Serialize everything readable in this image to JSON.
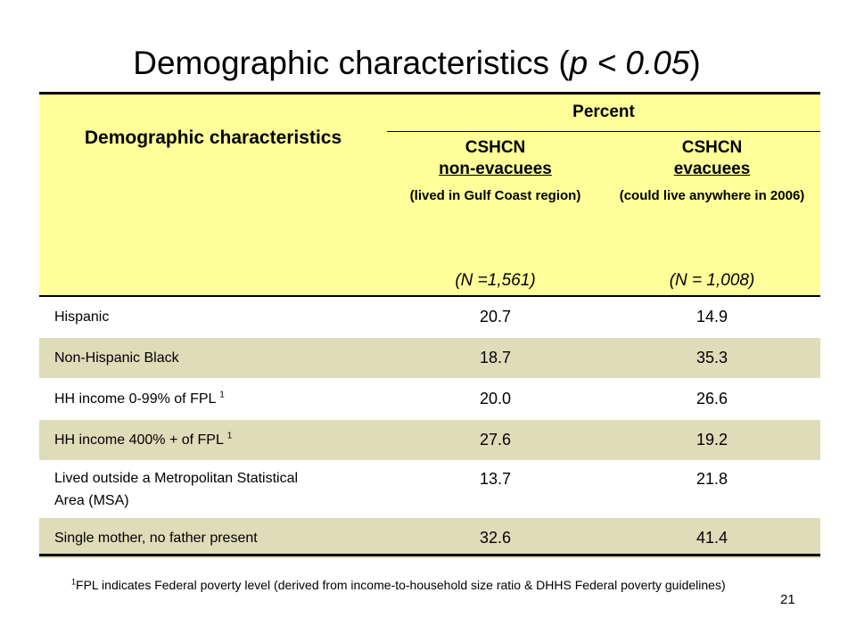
{
  "title": {
    "text": "Demographic characteristics",
    "open_paren": "(",
    "p_expr": "p < 0.05",
    "close_paren": ")"
  },
  "table": {
    "row_header_label": "Demographic characteristics",
    "group_header": "Percent",
    "columns": [
      {
        "name_line1": "CSHCN",
        "name_line2": "non-evacuees",
        "description": "(lived in Gulf Coast region)",
        "n": "(N =1,561)"
      },
      {
        "name_line1": "CSHCN",
        "name_line2": "evacuees",
        "description": "(could live anywhere in 2006)",
        "n": "(N = 1,008)"
      }
    ],
    "rows": [
      {
        "label": "Hispanic",
        "sup": "",
        "values": [
          "20.7",
          "14.9"
        ]
      },
      {
        "label": "Non-Hispanic Black",
        "sup": "",
        "values": [
          "18.7",
          "35.3"
        ]
      },
      {
        "label": "HH income 0-99% of FPL",
        "sup": "1",
        "values": [
          "20.0",
          "26.6"
        ]
      },
      {
        "label": "HH income 400% + of FPL",
        "sup": "1",
        "values": [
          "27.6",
          "19.2"
        ]
      },
      {
        "label": "Lived outside a Metropolitan Statistical Area (MSA)",
        "sup": "",
        "values": [
          "13.7",
          "21.8"
        ]
      },
      {
        "label": "Single mother, no father present",
        "sup": "",
        "values": [
          "32.6",
          "41.4"
        ]
      }
    ],
    "row_shading": [
      "#ffffff",
      "#dedcb9"
    ],
    "header_color": "#ffff99"
  },
  "footnote": {
    "sup": "1",
    "text": "FPL indicates Federal poverty level (derived from income-to-household size ratio & DHHS Federal poverty guidelines)"
  },
  "page_number": "21"
}
